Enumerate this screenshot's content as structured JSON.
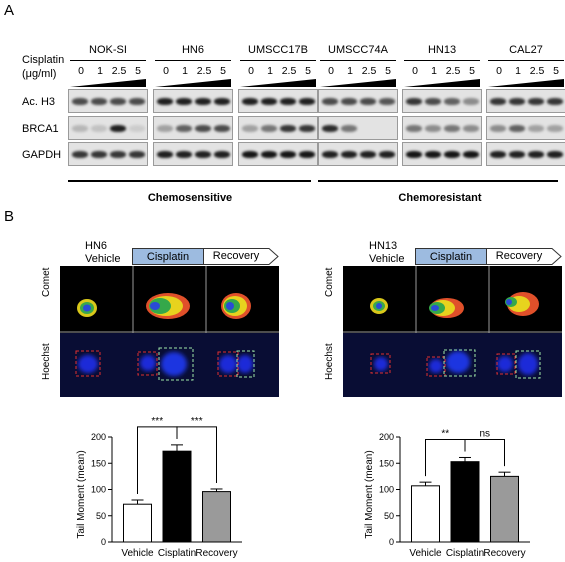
{
  "panel_a": {
    "letter": "A",
    "treatment_label_line1": "Cisplatin",
    "treatment_label_line2": "(μg/ml)",
    "cell_lines": [
      "NOK-SI",
      "HN6",
      "UMSCC17B",
      "UMSCC74A",
      "HN13",
      "CAL27"
    ],
    "doses": [
      "0",
      "1",
      "2.5",
      "5"
    ],
    "rows": [
      "Ac. H3",
      "BRCA1",
      "GAPDH"
    ],
    "groups": [
      "Chemosensitive",
      "Chemoresistant"
    ]
  },
  "panel_b": {
    "letter": "B",
    "hn6": {
      "title_line1": "HN6",
      "title_line2": "Vehicle",
      "step1": "Cisplatin",
      "step2": "Recovery",
      "row_comet": "Comet",
      "row_hoechst": "Hoechst"
    },
    "hn13": {
      "title_line1": "HN13",
      "title_line2": "Vehicle",
      "step1": "Cisplatin",
      "step2": "Recovery",
      "row_comet": "Comet",
      "row_hoechst": "Hoechst"
    }
  },
  "chart_data": [
    {
      "type": "bar",
      "categories": [
        "Vehicle",
        "Cisplatin",
        "Recovery"
      ],
      "values": [
        72,
        173,
        96
      ],
      "errors": [
        8,
        12,
        5
      ],
      "colors": [
        "#ffffff",
        "#000000",
        "#9a9a9a"
      ],
      "ylabel": "Tail Moment (mean)",
      "ylim": [
        0,
        200
      ],
      "yticks": [
        0,
        50,
        100,
        150,
        200
      ],
      "annotations": [
        {
          "from": "Vehicle",
          "to": "Cisplatin",
          "label": "***"
        },
        {
          "from": "Cisplatin",
          "to": "Recovery",
          "label": "***"
        }
      ]
    },
    {
      "type": "bar",
      "categories": [
        "Vehicle",
        "Cisplatin",
        "Recovery"
      ],
      "values": [
        107,
        153,
        125
      ],
      "errors": [
        7,
        8,
        8
      ],
      "colors": [
        "#ffffff",
        "#000000",
        "#9a9a9a"
      ],
      "ylabel": "Tail Moment (mean)",
      "ylim": [
        0,
        200
      ],
      "yticks": [
        0,
        50,
        100,
        150,
        200
      ],
      "annotations": [
        {
          "from": "Vehicle",
          "to": "Cisplatin",
          "label": "**"
        },
        {
          "from": "Cisplatin",
          "to": "Recovery",
          "label": "ns"
        }
      ]
    }
  ]
}
